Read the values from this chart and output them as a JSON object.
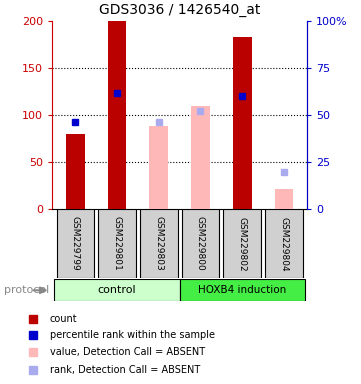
{
  "title": "GDS3036 / 1426540_at",
  "samples": [
    "GSM229799",
    "GSM229801",
    "GSM229803",
    "GSM229800",
    "GSM229802",
    "GSM229804"
  ],
  "ylim_left": [
    0,
    200
  ],
  "ylim_right": [
    0,
    100
  ],
  "yticks_left": [
    0,
    50,
    100,
    150,
    200
  ],
  "yticks_right": [
    0,
    25,
    50,
    75,
    100
  ],
  "ytick_labels_right": [
    "0",
    "25",
    "50",
    "75",
    "100%"
  ],
  "red_bar_color": "#bb0000",
  "pink_bar_color": "#ffb8b8",
  "blue_sq_color": "#0000cc",
  "lblue_sq_color": "#aaaaee",
  "absent_detection": [
    false,
    false,
    true,
    true,
    false,
    true
  ],
  "count_values": [
    80,
    200,
    0,
    0,
    183,
    0
  ],
  "percentile_values": [
    93,
    124,
    0,
    0,
    120,
    0
  ],
  "absent_value_values": [
    0,
    0,
    88,
    110,
    0,
    22
  ],
  "absent_rank_values": [
    0,
    0,
    93,
    104,
    0,
    40
  ],
  "left_axis_color": "#cc0000",
  "right_axis_color": "#0000cc",
  "ctrl_color": "#ccffcc",
  "hoxb_color": "#44ee44",
  "sample_box_color": "#d0d0d0",
  "gridline_ticks": [
    50,
    100,
    150
  ],
  "legend_colors": [
    "#bb0000",
    "#0000cc",
    "#ffb8b8",
    "#aaaaee"
  ],
  "legend_labels": [
    "count",
    "percentile rank within the sample",
    "value, Detection Call = ABSENT",
    "rank, Detection Call = ABSENT"
  ]
}
